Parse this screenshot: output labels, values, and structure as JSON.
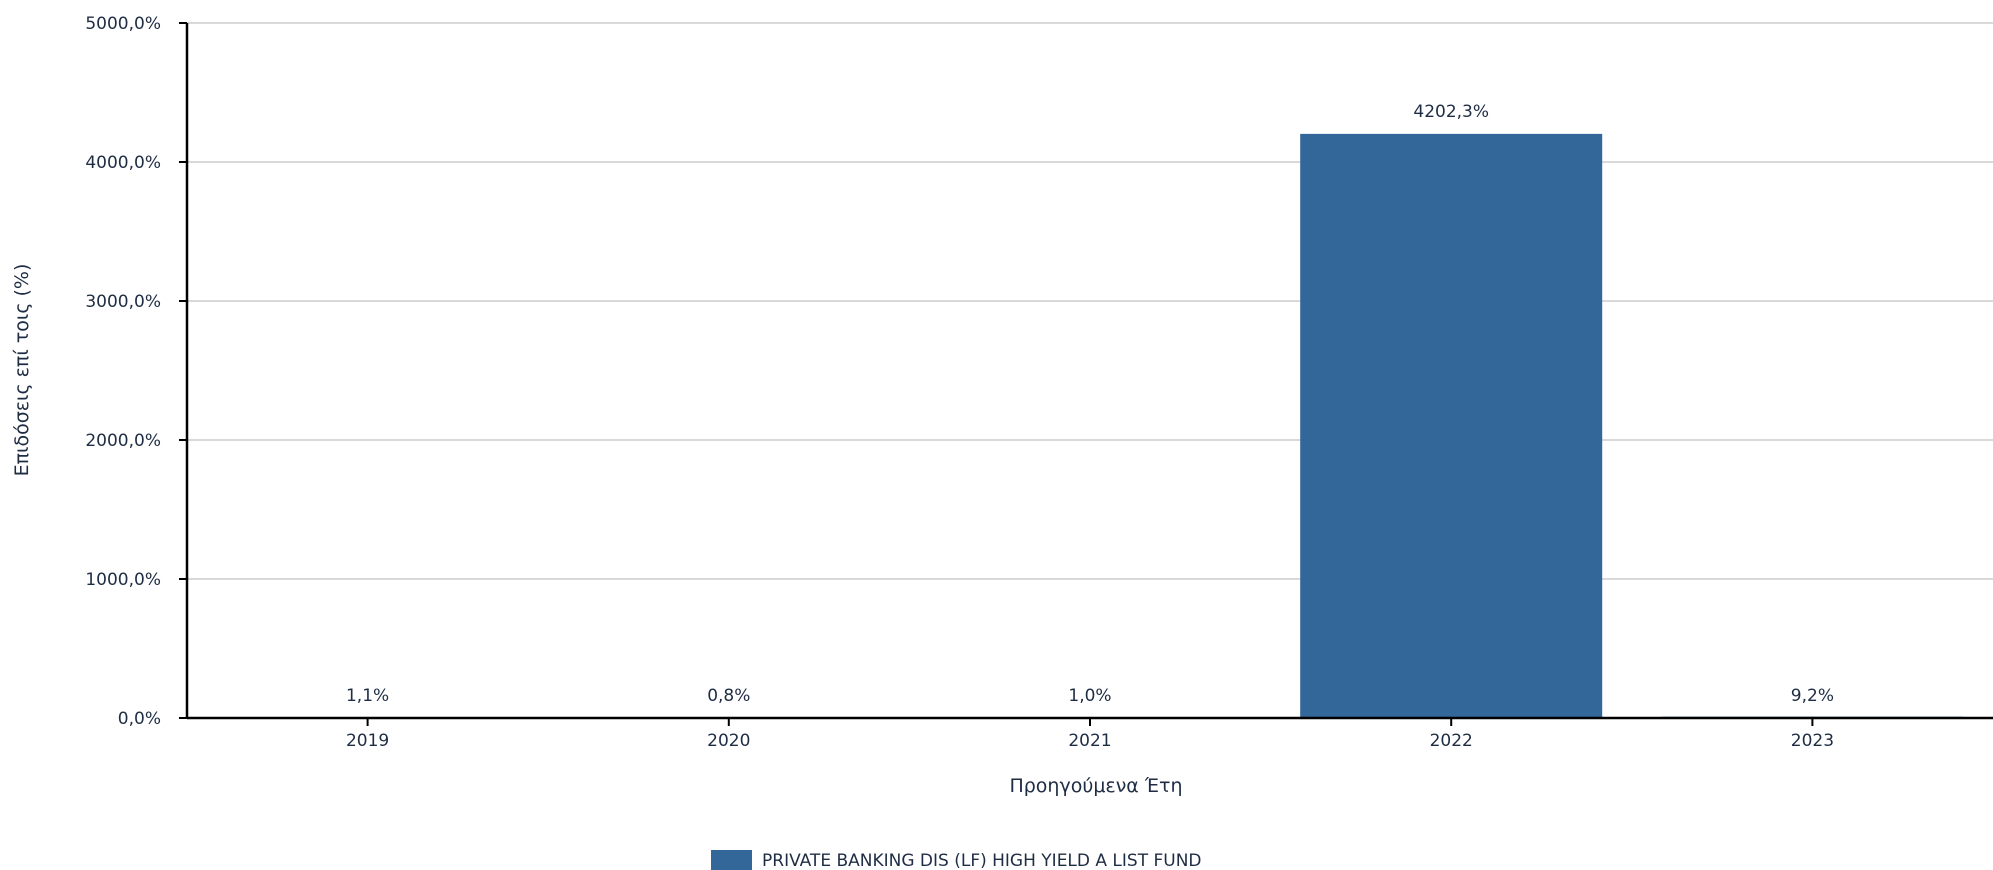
{
  "chart_data": {
    "type": "bar",
    "categories": [
      "2019",
      "2020",
      "2021",
      "2022",
      "2023"
    ],
    "series": [
      {
        "name": "PRIVATE BANKING DIS (LF) HIGH YIELD A LIST FUND",
        "values": [
          1.1,
          0.8,
          1.0,
          4202.3,
          9.2
        ],
        "value_labels": [
          "1,1%",
          "0,8%",
          "1,0%",
          "4202,3%",
          "9,2%"
        ],
        "color": "#336699"
      }
    ],
    "xlabel": "Προηγούμενα Έτη",
    "ylabel": "Επιδόσεις επί τοις (%)",
    "ylim": [
      0,
      5000
    ],
    "yticks": [
      0,
      1000,
      2000,
      3000,
      4000,
      5000
    ],
    "ytick_labels": [
      "0,0%",
      "1000,0%",
      "2000,0%",
      "3000,0%",
      "4000,0%",
      "5000,0%"
    ],
    "grid": true,
    "legend_position": "bottom-center",
    "colors": {
      "grid": "#d9d9d9",
      "axis": "#000000",
      "text": "#1f2d44"
    }
  }
}
